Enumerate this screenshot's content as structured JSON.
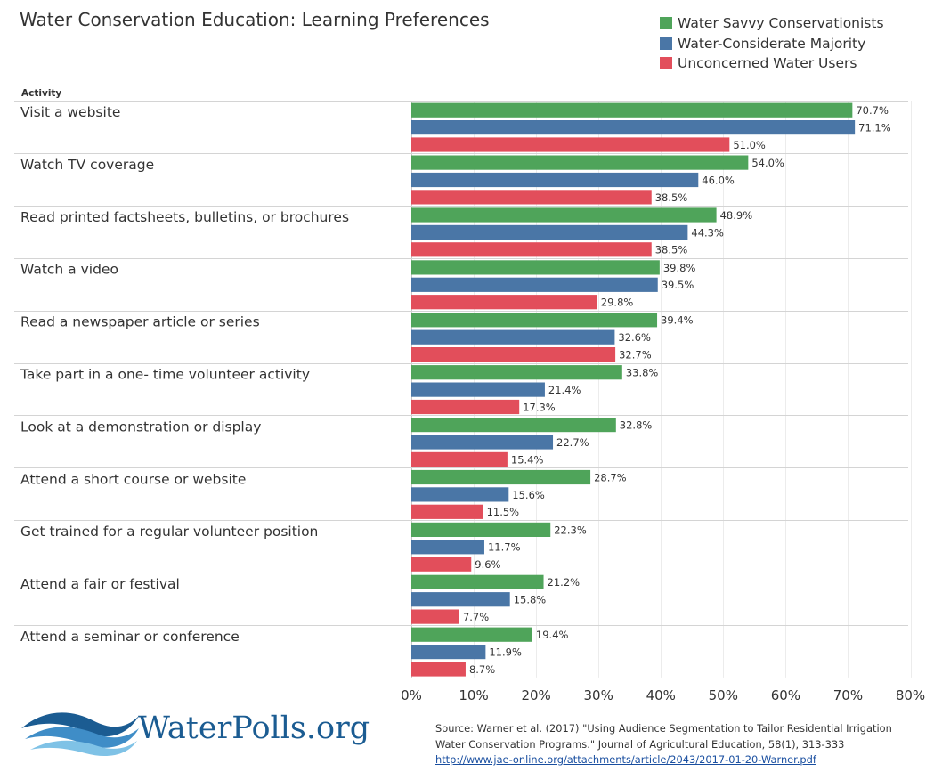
{
  "page": {
    "title": "Water Conservation Education: Learning Preferences"
  },
  "legend": {
    "items": [
      {
        "label": "Water Savvy Conservationists",
        "color": "#4fa45a"
      },
      {
        "label": "Water-Considerate Majority",
        "color": "#4a76a6"
      },
      {
        "label": "Unconcerned Water Users",
        "color": "#e24e5b"
      }
    ]
  },
  "chart_data": {
    "type": "bar",
    "orientation": "horizontal",
    "title": "Water Conservation Education: Learning Preferences",
    "category_axis_label": "Activity",
    "categories": [
      "Visit a website",
      "Watch TV coverage",
      "Read printed factsheets, bulletins, or brochures",
      "Watch a video",
      "Read a newspaper article or series",
      "Take part in a one- time volunteer activity",
      "Look at a demonstration or display",
      "Attend a short course or website",
      "Get trained for a regular volunteer position",
      "Attend a fair or festival",
      "Attend a seminar or conference"
    ],
    "series": [
      {
        "name": "Water Savvy Conservationists",
        "color": "#4fa45a",
        "values": [
          70.7,
          54.0,
          48.9,
          39.8,
          39.4,
          33.8,
          32.8,
          28.7,
          22.3,
          21.2,
          19.4
        ]
      },
      {
        "name": "Water-Considerate Majority",
        "color": "#4a76a6",
        "values": [
          71.1,
          46.0,
          44.3,
          39.5,
          32.6,
          21.4,
          22.7,
          15.6,
          11.7,
          15.8,
          11.9
        ]
      },
      {
        "name": "Unconcerned Water Users",
        "color": "#e24e5b",
        "values": [
          51.0,
          38.5,
          38.5,
          29.8,
          32.7,
          17.3,
          15.4,
          11.5,
          9.6,
          7.7,
          8.7
        ]
      }
    ],
    "value_axis": {
      "min": 0,
      "max": 80,
      "ticks": [
        0,
        10,
        20,
        30,
        40,
        50,
        60,
        70,
        80
      ],
      "tick_suffix": "%"
    },
    "value_label_suffix": "%",
    "grid": true,
    "legend_position": "top-right"
  },
  "logo": {
    "text": "WaterPolls.org"
  },
  "source": {
    "line1": "Source: Warner et al. (2017) \"Using Audience Segmentation to Tailor Residential Irrigation",
    "line2": "Water Conservation Programs.\" Journal of Agricultural Education, 58(1), 313-333",
    "link": "http://www.jae-online.org/attachments/article/2043/2017-01-20-Warner.pdf"
  }
}
